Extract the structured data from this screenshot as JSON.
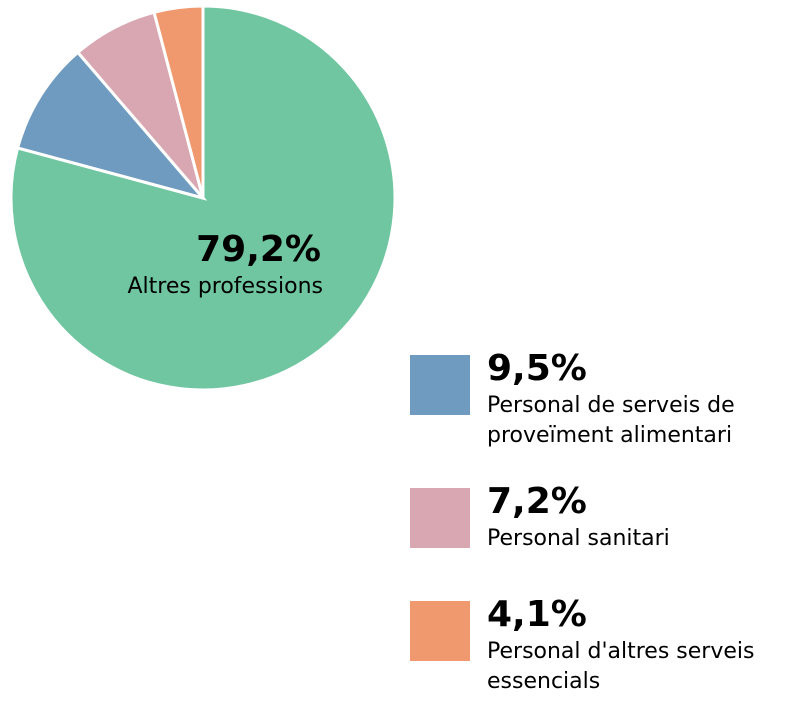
{
  "chart_data": {
    "type": "pie",
    "categories": [
      "Altres professions",
      "Personal de serveis de proveïment alimentari",
      "Personal sanitari",
      "Personal d'altres serveis essencials"
    ],
    "values": [
      79.2,
      9.5,
      7.2,
      4.1
    ],
    "value_labels": [
      "79,2%",
      "9,5%",
      "7,2%",
      "4,1%"
    ],
    "colors": [
      "#6fc6a0",
      "#6f9bc0",
      "#d8a7b1",
      "#f0996f"
    ]
  }
}
